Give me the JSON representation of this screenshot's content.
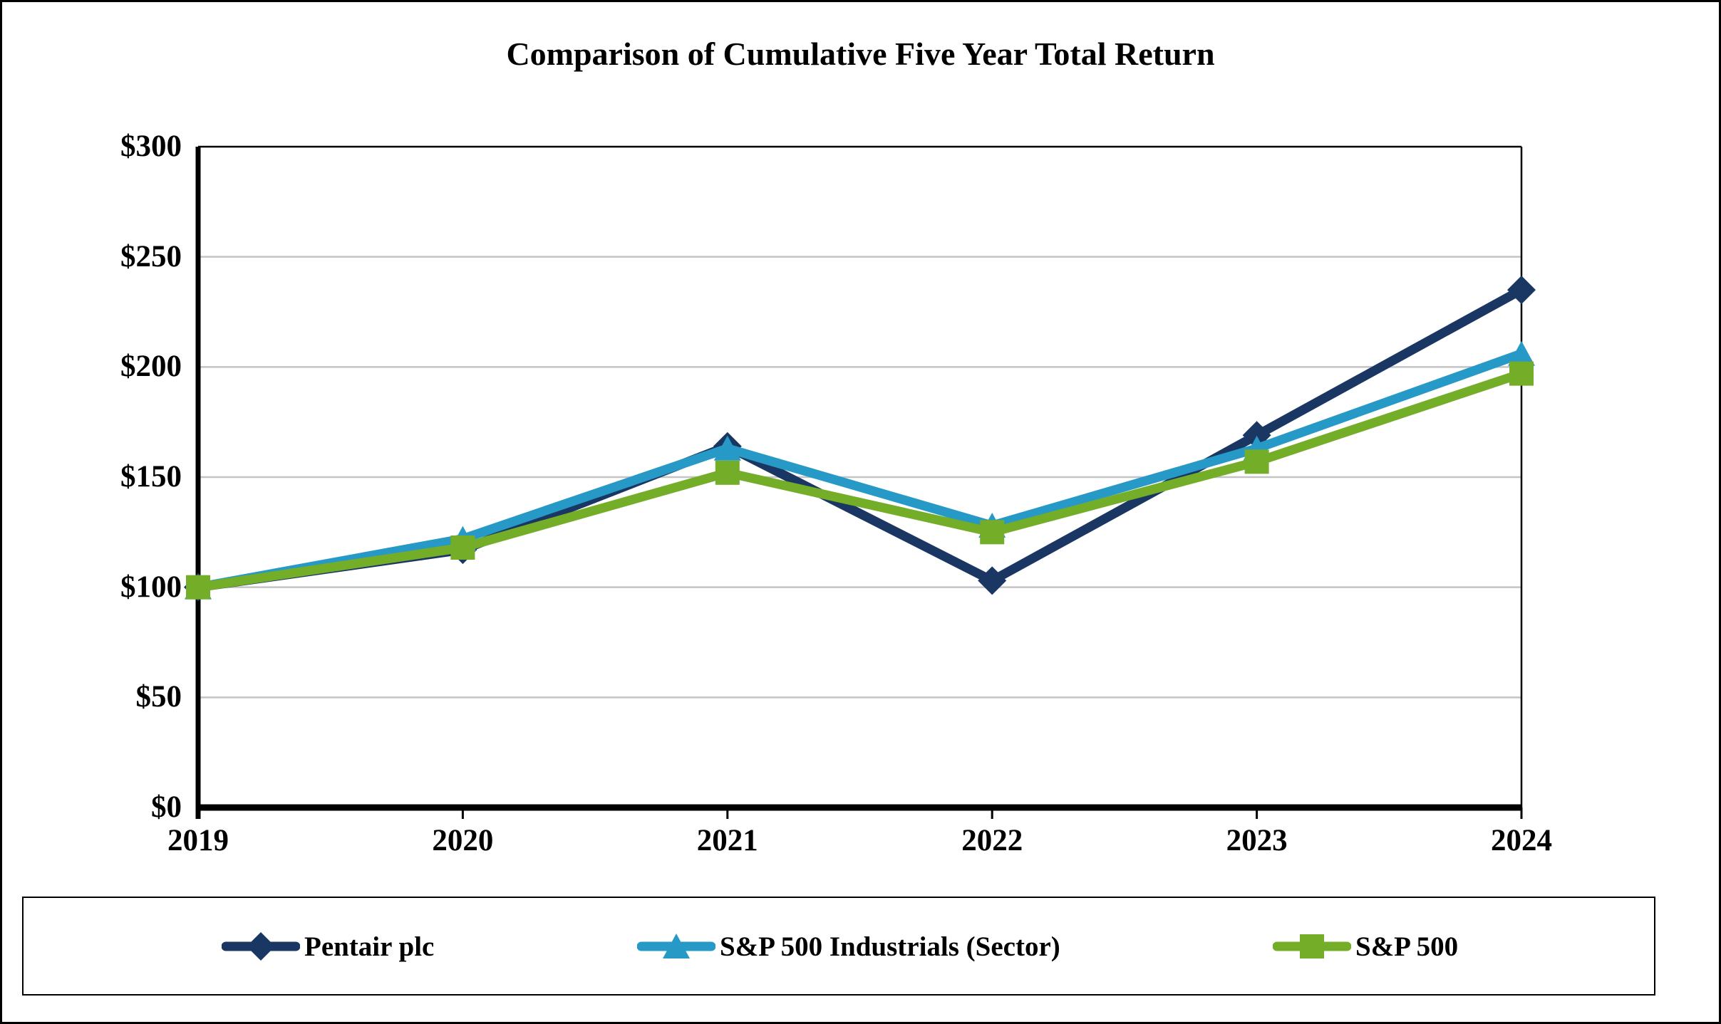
{
  "title": "Comparison of Cumulative Five Year Total Return",
  "chart_data": {
    "type": "line",
    "categories": [
      "2019",
      "2020",
      "2021",
      "2022",
      "2023",
      "2024"
    ],
    "series": [
      {
        "name": "Pentair plc",
        "marker": "diamond",
        "color": "#1a3764",
        "values": [
          100,
          117,
          164,
          103,
          169,
          235
        ]
      },
      {
        "name": "S&P 500 Industrials (Sector)",
        "marker": "triangle",
        "color": "#2799c6",
        "values": [
          100,
          122,
          163,
          128,
          163,
          206
        ]
      },
      {
        "name": "S&P 500",
        "marker": "square",
        "color": "#74ad28",
        "values": [
          100,
          118,
          152,
          125,
          157,
          197
        ]
      }
    ],
    "ylabel": "",
    "xlabel": "",
    "ylim": [
      0,
      300
    ],
    "ytick_step": 50,
    "ytick_labels": [
      "$0",
      "$50",
      "$100",
      "$150",
      "$200",
      "$250",
      "$300"
    ],
    "grid": true,
    "legend_position": "bottom"
  },
  "colors": {
    "grid": "#c4c4c4",
    "axis": "#000000",
    "frame": "#000000",
    "text": "#000000"
  }
}
